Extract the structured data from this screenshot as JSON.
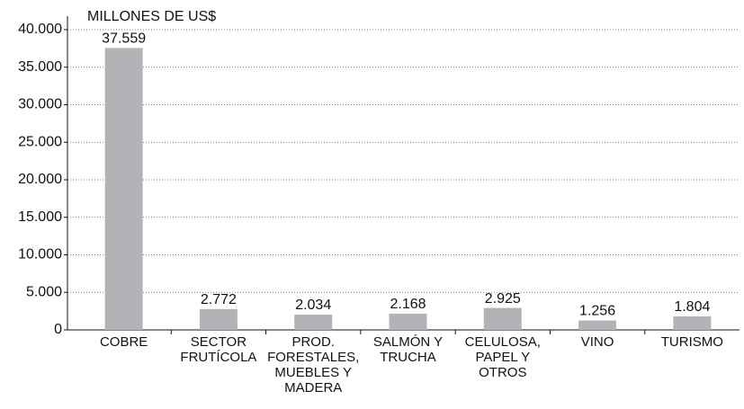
{
  "chart_data": {
    "type": "bar",
    "y_axis_label": "MILLONES DE US$",
    "categories": [
      "COBRE",
      "SECTOR\nFRUTÍCOLA",
      "PROD.\nFORESTALES,\nMUEBLES Y\nMADERA",
      "SALMÓN Y\nTRUCHA",
      "CELULOSA,\nPAPEL Y\nOTROS",
      "VINO",
      "TURISMO"
    ],
    "values": [
      37559,
      2772,
      2034,
      2168,
      2925,
      1256,
      1804
    ],
    "value_labels": [
      "37.559",
      "2.772",
      "2.034",
      "2.168",
      "2.925",
      "1.256",
      "1.804"
    ],
    "color": "#b1b3b6",
    "ylim": [
      0,
      40000
    ],
    "yticks": [
      0,
      {
        "value": 5000,
        "label": "5.000"
      },
      {
        "value": 10000,
        "label": "10.000"
      },
      {
        "value": 15000,
        "label": "15.000"
      },
      {
        "value": 20000,
        "label": "20.000"
      },
      {
        "value": 25000,
        "label": "25.000"
      },
      {
        "value": 30000,
        "label": "30.000"
      },
      {
        "value": 35000,
        "label": "35.000"
      },
      {
        "value": 40000,
        "label": "40.000"
      }
    ],
    "grid": true
  }
}
